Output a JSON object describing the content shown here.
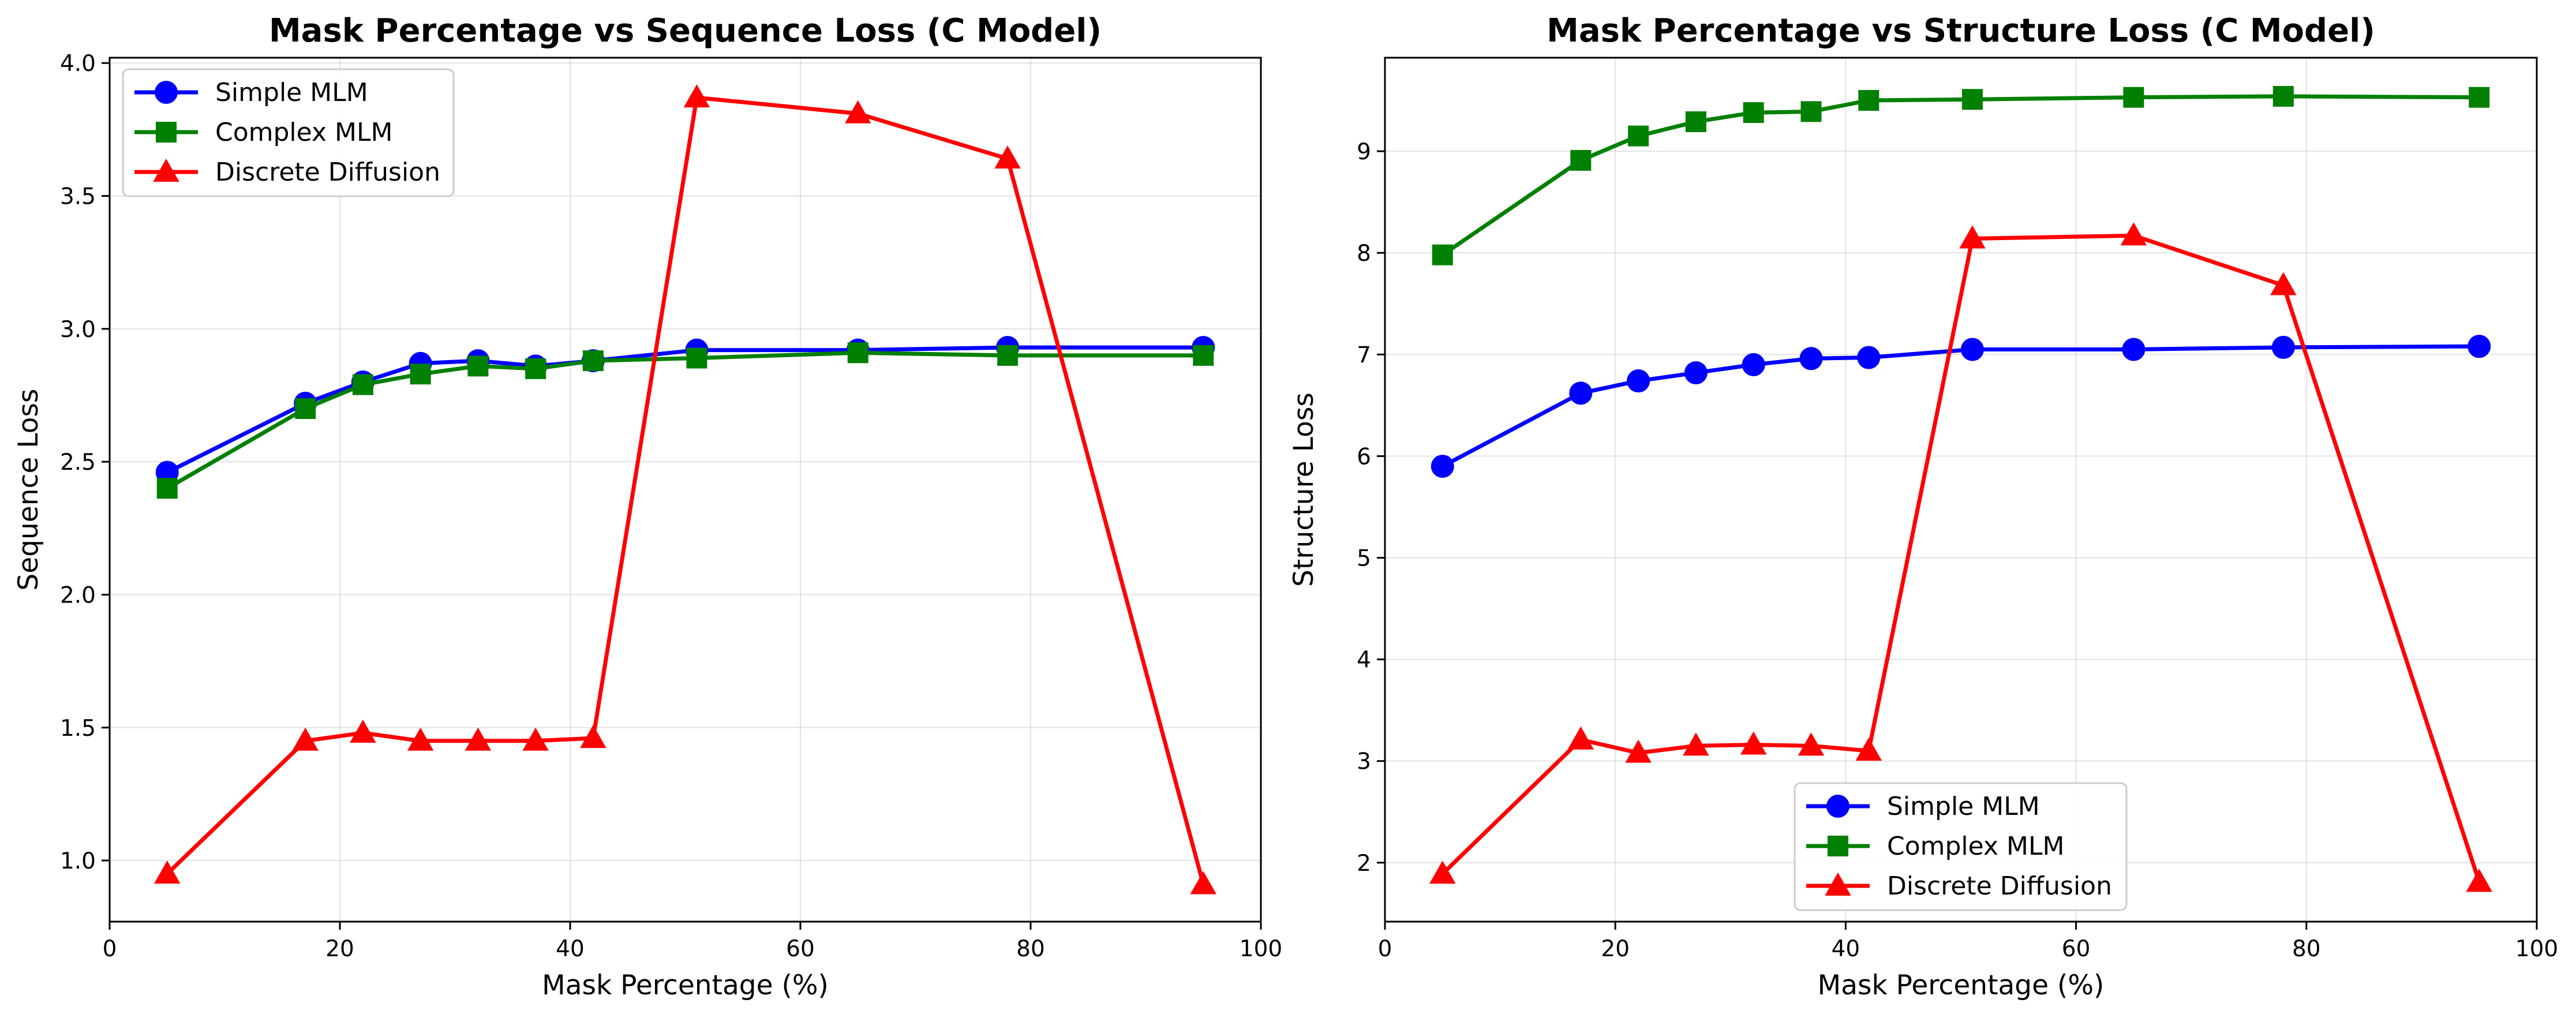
{
  "chart_data": [
    {
      "type": "line",
      "title": "Mask Percentage vs Sequence Loss (C Model)",
      "xlabel": "Mask Percentage (%)",
      "ylabel": "Sequence Loss",
      "xlim": [
        0,
        100
      ],
      "ylim": [
        0.77,
        4.02
      ],
      "xticks": [
        "0",
        "20",
        "40",
        "60",
        "80",
        "100"
      ],
      "yticks": [
        "1.0",
        "1.5",
        "2.0",
        "2.5",
        "3.0",
        "3.5",
        "4.0"
      ],
      "grid": true,
      "legend_position": "upper-left",
      "x": [
        5,
        17,
        22,
        27,
        32,
        37,
        42,
        51,
        65,
        78,
        95
      ],
      "series": [
        {
          "name": "Simple MLM",
          "color": "#0000ff",
          "marker": "circle",
          "values": [
            2.46,
            2.72,
            2.8,
            2.87,
            2.88,
            2.86,
            2.88,
            2.92,
            2.92,
            2.93,
            2.93
          ]
        },
        {
          "name": "Complex MLM",
          "color": "#008000",
          "marker": "square",
          "values": [
            2.4,
            2.7,
            2.79,
            2.83,
            2.86,
            2.85,
            2.88,
            2.89,
            2.91,
            2.9,
            2.9
          ]
        },
        {
          "name": "Discrete Diffusion",
          "color": "#ff0000",
          "marker": "triangle",
          "values": [
            0.95,
            1.45,
            1.48,
            1.45,
            1.45,
            1.45,
            1.46,
            3.87,
            3.81,
            3.64,
            0.91
          ]
        }
      ]
    },
    {
      "type": "line",
      "title": "Mask Percentage vs Structure Loss (C Model)",
      "xlabel": "Mask Percentage (%)",
      "ylabel": "Structure Loss",
      "xlim": [
        0,
        100
      ],
      "ylim": [
        1.42,
        9.92
      ],
      "xticks": [
        "0",
        "20",
        "40",
        "60",
        "80",
        "100"
      ],
      "yticks": [
        "2",
        "3",
        "4",
        "5",
        "6",
        "7",
        "8",
        "9"
      ],
      "grid": true,
      "legend_position": "lower-center",
      "x": [
        5,
        17,
        22,
        27,
        32,
        37,
        42,
        51,
        65,
        78,
        95
      ],
      "series": [
        {
          "name": "Simple MLM",
          "color": "#0000ff",
          "marker": "circle",
          "values": [
            5.9,
            6.62,
            6.74,
            6.82,
            6.9,
            6.96,
            6.97,
            7.05,
            7.05,
            7.07,
            7.08
          ]
        },
        {
          "name": "Complex MLM",
          "color": "#008000",
          "marker": "square",
          "values": [
            7.98,
            8.91,
            9.15,
            9.29,
            9.38,
            9.39,
            9.5,
            9.51,
            9.53,
            9.54,
            9.53
          ]
        },
        {
          "name": "Discrete Diffusion",
          "color": "#ff0000",
          "marker": "triangle",
          "values": [
            1.89,
            3.21,
            3.08,
            3.15,
            3.16,
            3.15,
            3.1,
            8.14,
            8.17,
            7.68,
            1.81
          ]
        }
      ]
    }
  ]
}
